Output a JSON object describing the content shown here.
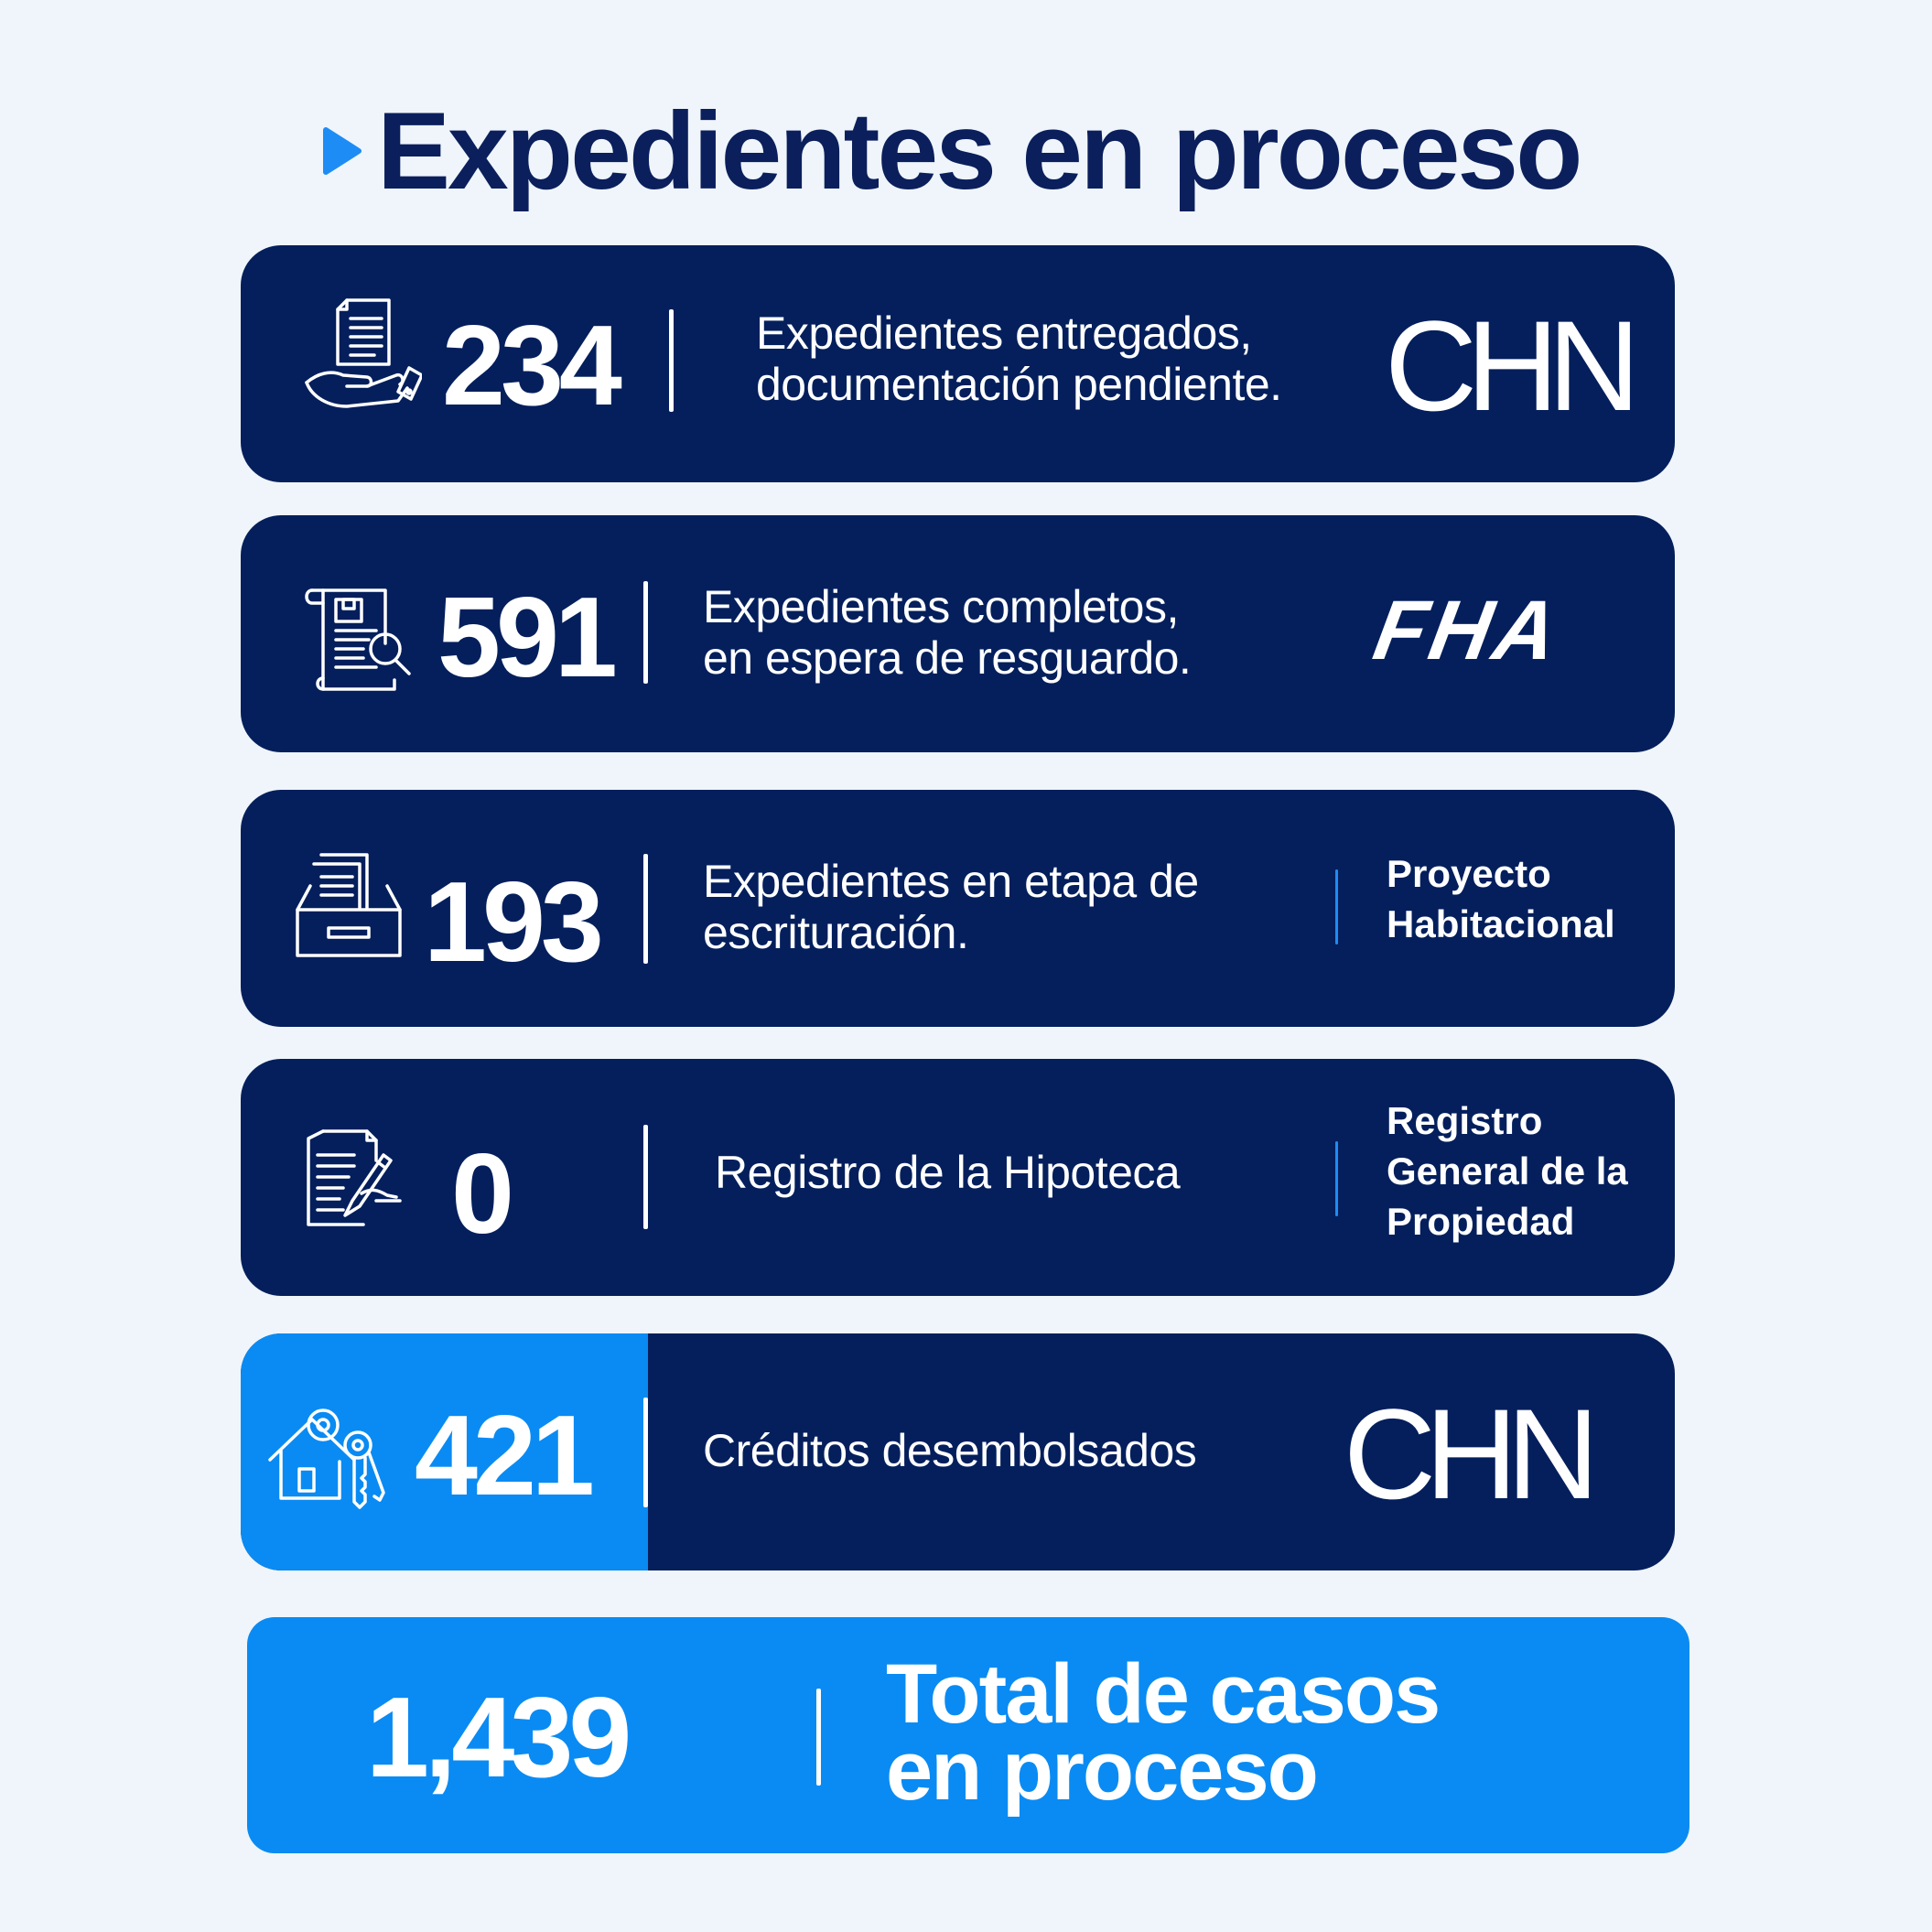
{
  "header": {
    "title": "Expedientes en proceso"
  },
  "colors": {
    "background": "#eff5fa",
    "card_navy": "#041f5c",
    "accent_blue": "#0a8bf3"
  },
  "cards": [
    {
      "number": "234",
      "description": [
        "Expedientes entregados,",
        "documentación pendiente."
      ],
      "icon": "hand-document-icon",
      "entity_logo": "CHN"
    },
    {
      "number": "591",
      "description": [
        "Expedientes completos,",
        "en espera de resguardo."
      ],
      "icon": "document-search-icon",
      "entity_logo": "FHA"
    },
    {
      "number": "193",
      "description": [
        "Expedientes en etapa de",
        "escrituración."
      ],
      "icon": "file-drawer-icon",
      "entity_text": [
        "Proyecto",
        "Habitacional"
      ]
    },
    {
      "number": "0",
      "description": [
        "Registro de la Hipoteca"
      ],
      "icon": "document-signing-icon",
      "entity_text": [
        "Registro",
        "General de la",
        "Propiedad"
      ]
    },
    {
      "number": "421",
      "description": [
        "Créditos desembolsados"
      ],
      "icon": "house-keys-icon",
      "entity_logo": "CHN"
    }
  ],
  "total": {
    "number": "1,439",
    "label": [
      "Total de casos",
      "en proceso"
    ]
  }
}
